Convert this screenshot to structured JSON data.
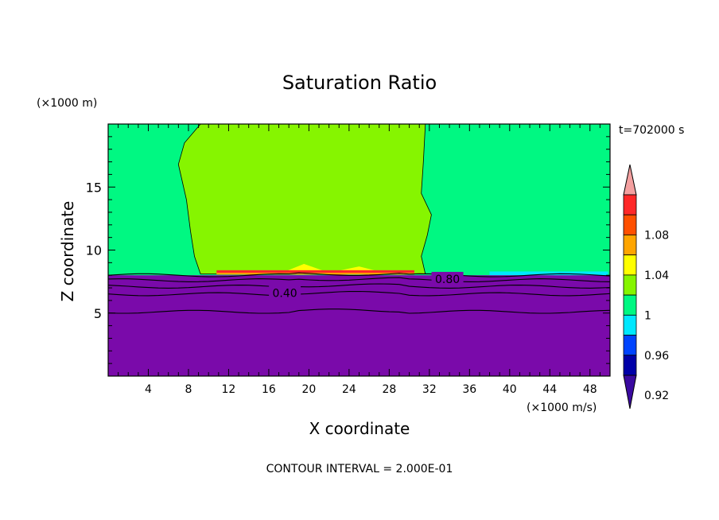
{
  "chart_data": {
    "type": "heatmap",
    "title": "Saturation Ratio",
    "xlabel": "X coordinate",
    "ylabel": "Z coordinate",
    "x_unit": "(×1000 m/s)",
    "y_unit": "(×1000 m)",
    "time_label": "t=702000 s",
    "footer": "CONTOUR INTERVAL = 2.000E-01",
    "xlim": [
      0,
      50
    ],
    "ylim": [
      0,
      20
    ],
    "xticks": [
      4,
      8,
      12,
      16,
      20,
      24,
      28,
      32,
      36,
      40,
      44,
      48
    ],
    "yticks": [
      5,
      10,
      15
    ],
    "contour_labels": [
      {
        "text": "0.40",
        "x": 17.6,
        "z": 6.6
      },
      {
        "text": "0.80",
        "x": 33.8,
        "z": 7.7
      }
    ],
    "regions": {
      "background_value": "0.98-1.00",
      "inner_value": "1.00-1.02",
      "inner_left_x": [
        7.5,
        9
      ],
      "inner_right_x": [
        31,
        32
      ],
      "inner_bottom_z": 8.1,
      "dry_layer_top_z": 8.0
    },
    "colorbar": {
      "levels": [
        0.92,
        0.96,
        1,
        1.04,
        1.08
      ],
      "colors": [
        "#3a0aa0",
        "#0000a8",
        "#0044ff",
        "#00e8ff",
        "#00f882",
        "#86f500",
        "#ffff00",
        "#ffa500",
        "#ff5000",
        "#ff2828",
        "#f4a0a0"
      ],
      "under_color": "#7a0aaa"
    }
  }
}
